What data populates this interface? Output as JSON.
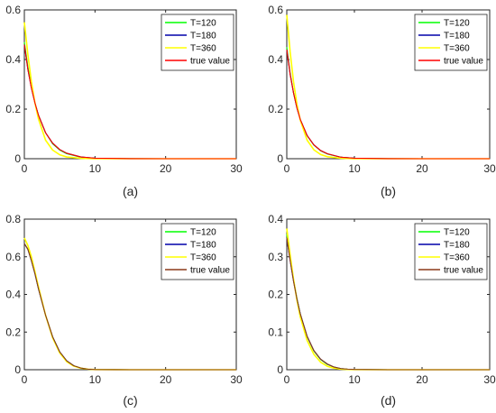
{
  "chart_data": [
    {
      "type": "line",
      "panel_label": "(a)",
      "xlim": [
        0,
        30
      ],
      "ylim": [
        0,
        0.6
      ],
      "xticks": [
        "0",
        "10",
        "20",
        "30"
      ],
      "yticks": [
        "0",
        "0.2",
        "0.4",
        "0.6"
      ],
      "legend_position": "top-right",
      "series": [
        {
          "name": "T=120",
          "color": "#00ff00",
          "x": [
            0,
            0.5,
            1,
            1.5,
            2,
            3,
            4,
            5,
            6,
            8,
            10,
            15,
            20,
            25,
            30
          ],
          "y": [
            0.47,
            0.37,
            0.29,
            0.225,
            0.175,
            0.105,
            0.06,
            0.035,
            0.02,
            0.006,
            0.002,
            0.0002,
            0,
            0,
            0
          ]
        },
        {
          "name": "T=180",
          "color": "#0000aa",
          "x": [
            0,
            0.5,
            1,
            1.5,
            2,
            3,
            4,
            5,
            6,
            8,
            10,
            15,
            20,
            25,
            30
          ],
          "y": [
            0.46,
            0.36,
            0.285,
            0.225,
            0.175,
            0.105,
            0.063,
            0.037,
            0.022,
            0.007,
            0.002,
            0.0002,
            0,
            0,
            0
          ]
        },
        {
          "name": "T=360",
          "color": "#ffff00",
          "x": [
            0,
            0.5,
            1,
            1.5,
            2,
            3,
            4,
            5,
            6,
            8,
            10,
            15,
            20,
            25,
            30
          ],
          "y": [
            0.55,
            0.42,
            0.31,
            0.225,
            0.16,
            0.075,
            0.035,
            0.016,
            0.007,
            0.0015,
            0.0003,
            0,
            0,
            0,
            0
          ]
        },
        {
          "name": "true value",
          "color": "#ff0000",
          "x": [
            0,
            0.5,
            1,
            1.5,
            2,
            3,
            4,
            5,
            6,
            8,
            10,
            15,
            20,
            25,
            30
          ],
          "y": [
            0.46,
            0.36,
            0.285,
            0.225,
            0.175,
            0.105,
            0.063,
            0.037,
            0.022,
            0.007,
            0.002,
            0.0002,
            0,
            0,
            0
          ]
        }
      ]
    },
    {
      "type": "line",
      "panel_label": "(b)",
      "xlim": [
        0,
        30
      ],
      "ylim": [
        0,
        0.6
      ],
      "xticks": [
        "0",
        "10",
        "20",
        "30"
      ],
      "yticks": [
        "0",
        "0.2",
        "0.4",
        "0.6"
      ],
      "legend_position": "top-right",
      "series": [
        {
          "name": "T=120",
          "color": "#00ff00",
          "x": [
            0,
            0.5,
            1,
            1.5,
            2,
            3,
            4,
            5,
            6,
            8,
            10,
            15,
            20,
            25,
            30
          ],
          "y": [
            0.45,
            0.345,
            0.265,
            0.205,
            0.158,
            0.093,
            0.055,
            0.032,
            0.019,
            0.006,
            0.002,
            0.0002,
            0,
            0,
            0
          ]
        },
        {
          "name": "T=180",
          "color": "#0000aa",
          "x": [
            0,
            0.5,
            1,
            1.5,
            2,
            3,
            4,
            5,
            6,
            8,
            10,
            15,
            20,
            25,
            30
          ],
          "y": [
            0.44,
            0.34,
            0.265,
            0.205,
            0.158,
            0.094,
            0.056,
            0.033,
            0.02,
            0.006,
            0.002,
            0.0002,
            0,
            0,
            0
          ]
        },
        {
          "name": "T=360",
          "color": "#ffff00",
          "x": [
            0,
            0.5,
            1,
            1.5,
            2,
            3,
            4,
            5,
            6,
            8,
            10,
            15,
            20,
            25,
            30
          ],
          "y": [
            0.58,
            0.43,
            0.31,
            0.22,
            0.155,
            0.075,
            0.036,
            0.017,
            0.008,
            0.002,
            0.0004,
            0,
            0,
            0,
            0
          ]
        },
        {
          "name": "true value",
          "color": "#ff0000",
          "x": [
            0,
            0.5,
            1,
            1.5,
            2,
            3,
            4,
            5,
            6,
            8,
            10,
            15,
            20,
            25,
            30
          ],
          "y": [
            0.44,
            0.34,
            0.265,
            0.205,
            0.158,
            0.094,
            0.056,
            0.033,
            0.02,
            0.006,
            0.002,
            0.0002,
            0,
            0,
            0
          ]
        }
      ]
    },
    {
      "type": "line",
      "panel_label": "(c)",
      "xlim": [
        0,
        30
      ],
      "ylim": [
        0,
        0.8
      ],
      "xticks": [
        "0",
        "10",
        "20",
        "30"
      ],
      "yticks": [
        "0",
        "0.2",
        "0.4",
        "0.6",
        "0.8"
      ],
      "legend_position": "top-right",
      "series": [
        {
          "name": "T=120",
          "color": "#00ff00",
          "x": [
            0,
            0.5,
            1,
            1.5,
            2,
            3,
            4,
            5,
            6,
            7,
            8,
            9,
            10,
            15,
            20,
            25,
            30
          ],
          "y": [
            0.67,
            0.64,
            0.58,
            0.51,
            0.43,
            0.29,
            0.175,
            0.095,
            0.047,
            0.021,
            0.009,
            0.003,
            0.001,
            0,
            0,
            0,
            0
          ]
        },
        {
          "name": "T=180",
          "color": "#0000aa",
          "x": [
            0,
            0.5,
            1,
            1.5,
            2,
            3,
            4,
            5,
            6,
            7,
            8,
            9,
            10,
            15,
            20,
            25,
            30
          ],
          "y": [
            0.67,
            0.64,
            0.58,
            0.51,
            0.43,
            0.29,
            0.175,
            0.095,
            0.047,
            0.021,
            0.009,
            0.003,
            0.001,
            0,
            0,
            0,
            0
          ]
        },
        {
          "name": "T=360",
          "color": "#ffff00",
          "x": [
            0,
            0.5,
            1,
            1.5,
            2,
            3,
            4,
            5,
            6,
            7,
            8,
            9,
            10,
            15,
            20,
            25,
            30
          ],
          "y": [
            0.7,
            0.66,
            0.6,
            0.52,
            0.44,
            0.29,
            0.17,
            0.09,
            0.043,
            0.019,
            0.008,
            0.003,
            0.001,
            0,
            0,
            0,
            0
          ]
        },
        {
          "name": "true value",
          "color": "#8b3a1a",
          "x": [
            0,
            0.5,
            1,
            1.5,
            2,
            3,
            4,
            5,
            6,
            7,
            8,
            9,
            10,
            15,
            20,
            25,
            30
          ],
          "y": [
            0.67,
            0.64,
            0.58,
            0.51,
            0.43,
            0.29,
            0.175,
            0.095,
            0.047,
            0.021,
            0.009,
            0.003,
            0.001,
            0,
            0,
            0,
            0
          ]
        }
      ]
    },
    {
      "type": "line",
      "panel_label": "(d)",
      "xlim": [
        0,
        30
      ],
      "ylim": [
        0,
        0.4
      ],
      "xticks": [
        "0",
        "10",
        "20",
        "30"
      ],
      "yticks": [
        "0",
        "0.1",
        "0.2",
        "0.3",
        "0.4"
      ],
      "legend_position": "top-right",
      "series": [
        {
          "name": "T=120",
          "color": "#00ff00",
          "x": [
            0,
            0.5,
            1,
            1.5,
            2,
            3,
            4,
            5,
            6,
            7,
            8,
            9,
            10,
            15,
            20,
            25,
            30
          ],
          "y": [
            0.36,
            0.3,
            0.24,
            0.19,
            0.148,
            0.088,
            0.05,
            0.027,
            0.014,
            0.007,
            0.003,
            0.0015,
            0.0007,
            0,
            0,
            0,
            0
          ]
        },
        {
          "name": "T=180",
          "color": "#0000aa",
          "x": [
            0,
            0.5,
            1,
            1.5,
            2,
            3,
            4,
            5,
            6,
            7,
            8,
            9,
            10,
            15,
            20,
            25,
            30
          ],
          "y": [
            0.35,
            0.29,
            0.235,
            0.188,
            0.148,
            0.089,
            0.051,
            0.028,
            0.015,
            0.007,
            0.003,
            0.0015,
            0.0007,
            0,
            0,
            0,
            0
          ]
        },
        {
          "name": "T=360",
          "color": "#ffff00",
          "x": [
            0,
            0.5,
            1,
            1.5,
            2,
            3,
            4,
            5,
            6,
            7,
            8,
            9,
            10,
            15,
            20,
            25,
            30
          ],
          "y": [
            0.375,
            0.305,
            0.24,
            0.185,
            0.14,
            0.078,
            0.041,
            0.02,
            0.009,
            0.004,
            0.0017,
            0.0007,
            0.0003,
            0,
            0,
            0,
            0
          ]
        },
        {
          "name": "true value",
          "color": "#8b3a1a",
          "x": [
            0,
            0.5,
            1,
            1.5,
            2,
            3,
            4,
            5,
            6,
            7,
            8,
            9,
            10,
            15,
            20,
            25,
            30
          ],
          "y": [
            0.35,
            0.29,
            0.235,
            0.188,
            0.148,
            0.089,
            0.051,
            0.028,
            0.015,
            0.007,
            0.003,
            0.0015,
            0.0007,
            0,
            0,
            0,
            0
          ]
        }
      ]
    }
  ]
}
